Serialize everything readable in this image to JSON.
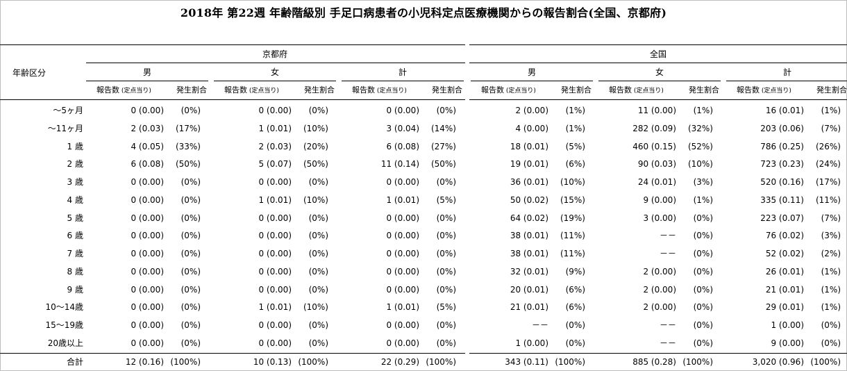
{
  "title": "2018年 第22週 年齢階級別 手足口病患者の小児科定点医療機関からの報告割合(全国、京都府)",
  "header": {
    "age_label": "年齢区分",
    "regions": [
      "京都府",
      "全国"
    ],
    "sexes": [
      "男",
      "女",
      "計"
    ],
    "sub_report": "報告数",
    "sub_per_point": "(定点当り)",
    "sub_ratio": "発生割合"
  },
  "rows": [
    {
      "label": "～5ヶ月",
      "cells": [
        [
          "0 (0.00)",
          "(0%)"
        ],
        [
          "0 (0.00)",
          "(0%)"
        ],
        [
          "0 (0.00)",
          "(0%)"
        ],
        [
          "2 (0.00)",
          "(1%)"
        ],
        [
          "11 (0.00)",
          "(1%)"
        ],
        [
          "16 (0.01)",
          "(1%)"
        ]
      ]
    },
    {
      "label": "～11ヶ月",
      "cells": [
        [
          "2 (0.03)",
          "(17%)"
        ],
        [
          "1 (0.01)",
          "(10%)"
        ],
        [
          "3 (0.04)",
          "(14%)"
        ],
        [
          "4 (0.00)",
          "(1%)"
        ],
        [
          "282 (0.09)",
          "(32%)"
        ],
        [
          "203 (0.06)",
          "(7%)"
        ]
      ]
    },
    {
      "label": "1 歳",
      "cells": [
        [
          "4 (0.05)",
          "(33%)"
        ],
        [
          "2 (0.03)",
          "(20%)"
        ],
        [
          "6 (0.08)",
          "(27%)"
        ],
        [
          "18 (0.01)",
          "(5%)"
        ],
        [
          "460 (0.15)",
          "(52%)"
        ],
        [
          "786 (0.25)",
          "(26%)"
        ]
      ]
    },
    {
      "label": "2 歳",
      "cells": [
        [
          "6 (0.08)",
          "(50%)"
        ],
        [
          "5 (0.07)",
          "(50%)"
        ],
        [
          "11 (0.14)",
          "(50%)"
        ],
        [
          "19 (0.01)",
          "(6%)"
        ],
        [
          "90 (0.03)",
          "(10%)"
        ],
        [
          "723 (0.23)",
          "(24%)"
        ]
      ]
    },
    {
      "label": "3 歳",
      "cells": [
        [
          "0 (0.00)",
          "(0%)"
        ],
        [
          "0 (0.00)",
          "(0%)"
        ],
        [
          "0 (0.00)",
          "(0%)"
        ],
        [
          "36 (0.01)",
          "(10%)"
        ],
        [
          "24 (0.01)",
          "(3%)"
        ],
        [
          "520 (0.16)",
          "(17%)"
        ]
      ]
    },
    {
      "label": "4 歳",
      "cells": [
        [
          "0 (0.00)",
          "(0%)"
        ],
        [
          "1 (0.01)",
          "(10%)"
        ],
        [
          "1 (0.01)",
          "(5%)"
        ],
        [
          "50 (0.02)",
          "(15%)"
        ],
        [
          "9 (0.00)",
          "(1%)"
        ],
        [
          "335 (0.11)",
          "(11%)"
        ]
      ]
    },
    {
      "label": "5 歳",
      "cells": [
        [
          "0 (0.00)",
          "(0%)"
        ],
        [
          "0 (0.00)",
          "(0%)"
        ],
        [
          "0 (0.00)",
          "(0%)"
        ],
        [
          "64 (0.02)",
          "(19%)"
        ],
        [
          "3 (0.00)",
          "(0%)"
        ],
        [
          "223 (0.07)",
          "(7%)"
        ]
      ]
    },
    {
      "label": "6 歳",
      "cells": [
        [
          "0 (0.00)",
          "(0%)"
        ],
        [
          "0 (0.00)",
          "(0%)"
        ],
        [
          "0 (0.00)",
          "(0%)"
        ],
        [
          "38 (0.01)",
          "(11%)"
        ],
        [
          "－－",
          "(0%)"
        ],
        [
          "76 (0.02)",
          "(3%)"
        ]
      ]
    },
    {
      "label": "7 歳",
      "cells": [
        [
          "0 (0.00)",
          "(0%)"
        ],
        [
          "0 (0.00)",
          "(0%)"
        ],
        [
          "0 (0.00)",
          "(0%)"
        ],
        [
          "38 (0.01)",
          "(11%)"
        ],
        [
          "－－",
          "(0%)"
        ],
        [
          "52 (0.02)",
          "(2%)"
        ]
      ]
    },
    {
      "label": "8 歳",
      "cells": [
        [
          "0 (0.00)",
          "(0%)"
        ],
        [
          "0 (0.00)",
          "(0%)"
        ],
        [
          "0 (0.00)",
          "(0%)"
        ],
        [
          "32 (0.01)",
          "(9%)"
        ],
        [
          "2 (0.00)",
          "(0%)"
        ],
        [
          "26 (0.01)",
          "(1%)"
        ]
      ]
    },
    {
      "label": "9 歳",
      "cells": [
        [
          "0 (0.00)",
          "(0%)"
        ],
        [
          "0 (0.00)",
          "(0%)"
        ],
        [
          "0 (0.00)",
          "(0%)"
        ],
        [
          "20 (0.01)",
          "(6%)"
        ],
        [
          "2 (0.00)",
          "(0%)"
        ],
        [
          "21 (0.01)",
          "(1%)"
        ]
      ]
    },
    {
      "label": "10～14歳",
      "cells": [
        [
          "0 (0.00)",
          "(0%)"
        ],
        [
          "1 (0.01)",
          "(10%)"
        ],
        [
          "1 (0.01)",
          "(5%)"
        ],
        [
          "21 (0.01)",
          "(6%)"
        ],
        [
          "2 (0.00)",
          "(0%)"
        ],
        [
          "29 (0.01)",
          "(1%)"
        ]
      ]
    },
    {
      "label": "15～19歳",
      "cells": [
        [
          "0 (0.00)",
          "(0%)"
        ],
        [
          "0 (0.00)",
          "(0%)"
        ],
        [
          "0 (0.00)",
          "(0%)"
        ],
        [
          "－－",
          "(0%)"
        ],
        [
          "－－",
          "(0%)"
        ],
        [
          "1 (0.00)",
          "(0%)"
        ]
      ]
    },
    {
      "label": "20歳以上",
      "cells": [
        [
          "0 (0.00)",
          "(0%)"
        ],
        [
          "0 (0.00)",
          "(0%)"
        ],
        [
          "0 (0.00)",
          "(0%)"
        ],
        [
          "1 (0.00)",
          "(0%)"
        ],
        [
          "－－",
          "(0%)"
        ],
        [
          "9 (0.00)",
          "(0%)"
        ]
      ]
    }
  ],
  "total": {
    "label": "合計",
    "cells": [
      [
        "12 (0.16)",
        "(100%)"
      ],
      [
        "10 (0.13)",
        "(100%)"
      ],
      [
        "22 (0.29)",
        "(100%)"
      ],
      [
        "343 (0.11)",
        "(100%)"
      ],
      [
        "885 (0.28)",
        "(100%)"
      ],
      [
        "3,020 (0.96)",
        "(100%)"
      ]
    ]
  }
}
